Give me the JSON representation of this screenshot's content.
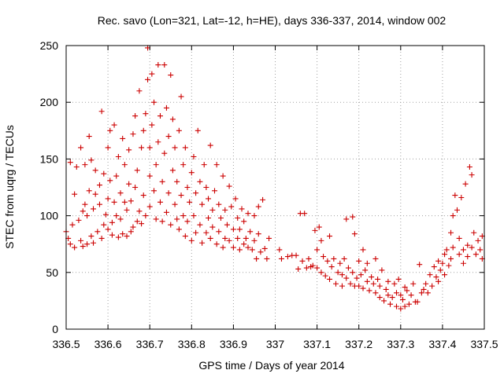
{
  "chart_data": {
    "type": "scatter",
    "title": "Rec. savo (Lon=321, Lat=-12, h=HE), days 336-337, 2014, window 002",
    "xlabel": "GPS time / Days of year 2014",
    "ylabel": "STEC from uqrg / TECUs",
    "xlim": [
      336.5,
      337.5
    ],
    "ylim": [
      0,
      250
    ],
    "xticks": [
      336.5,
      336.6,
      336.7,
      336.8,
      336.9,
      337,
      337.1,
      337.2,
      337.3,
      337.4,
      337.5
    ],
    "xtick_labels": [
      "336.5",
      "336.6",
      "336.7",
      "336.8",
      "336.9",
      "337",
      "337.1",
      "337.2",
      "337.3",
      "337.4",
      "337.5"
    ],
    "yticks": [
      0,
      50,
      100,
      150,
      200,
      250
    ],
    "ytick_labels": [
      "0",
      "50",
      "100",
      "150",
      "200",
      "250"
    ],
    "grid": true,
    "marker": "+",
    "color": "#cc0000",
    "series": [
      {
        "name": "STEC",
        "points": [
          [
            336.5,
            86
          ],
          [
            336.505,
            80
          ],
          [
            336.51,
            75
          ],
          [
            336.51,
            147
          ],
          [
            336.515,
            92
          ],
          [
            336.52,
            72
          ],
          [
            336.52,
            119
          ],
          [
            336.525,
            143
          ],
          [
            336.53,
            96
          ],
          [
            336.535,
            78
          ],
          [
            336.535,
            160
          ],
          [
            336.54,
            73
          ],
          [
            336.54,
            104
          ],
          [
            336.545,
            110
          ],
          [
            336.545,
            145
          ],
          [
            336.55,
            75
          ],
          [
            336.55,
            100
          ],
          [
            336.555,
            170
          ],
          [
            336.555,
            122
          ],
          [
            336.56,
            82
          ],
          [
            336.56,
            149
          ],
          [
            336.565,
            76
          ],
          [
            336.565,
            106
          ],
          [
            336.57,
            119
          ],
          [
            336.57,
            140
          ],
          [
            336.575,
            86
          ],
          [
            336.58,
            110
          ],
          [
            336.58,
            127
          ],
          [
            336.585,
            80
          ],
          [
            336.585,
            192
          ],
          [
            336.59,
            92
          ],
          [
            336.59,
            137
          ],
          [
            336.595,
            101
          ],
          [
            336.6,
            88
          ],
          [
            336.6,
            115
          ],
          [
            336.6,
            160
          ],
          [
            336.605,
            175
          ],
          [
            336.605,
            131
          ],
          [
            336.61,
            94
          ],
          [
            336.61,
            83
          ],
          [
            336.615,
            112
          ],
          [
            336.615,
            180
          ],
          [
            336.62,
            135
          ],
          [
            336.62,
            100
          ],
          [
            336.625,
            81
          ],
          [
            336.625,
            152
          ],
          [
            336.63,
            120
          ],
          [
            336.63,
            97
          ],
          [
            336.635,
            84
          ],
          [
            336.635,
            168
          ],
          [
            336.64,
            112
          ],
          [
            336.64,
            145
          ],
          [
            336.645,
            82
          ],
          [
            336.645,
            105
          ],
          [
            336.65,
            128
          ],
          [
            336.65,
            158
          ],
          [
            336.655,
            86
          ],
          [
            336.655,
            113
          ],
          [
            336.66,
            172
          ],
          [
            336.66,
            90
          ],
          [
            336.665,
            125
          ],
          [
            336.665,
            188
          ],
          [
            336.67,
            95
          ],
          [
            336.67,
            140
          ],
          [
            336.675,
            104
          ],
          [
            336.675,
            210
          ],
          [
            336.68,
            93
          ],
          [
            336.68,
            160
          ],
          [
            336.685,
            118
          ],
          [
            336.685,
            175
          ],
          [
            336.69,
            100
          ],
          [
            336.69,
            190
          ],
          [
            336.695,
            220
          ],
          [
            336.695,
            248
          ],
          [
            336.7,
            108
          ],
          [
            336.7,
            135
          ],
          [
            336.7,
            160
          ],
          [
            336.705,
            225
          ],
          [
            336.705,
            180
          ],
          [
            336.71,
            122
          ],
          [
            336.71,
            200
          ],
          [
            336.715,
            97
          ],
          [
            336.715,
            145
          ],
          [
            336.72,
            233
          ],
          [
            336.72,
            165
          ],
          [
            336.725,
            112
          ],
          [
            336.725,
            188
          ],
          [
            336.73,
            95
          ],
          [
            336.73,
            130
          ],
          [
            336.735,
            233
          ],
          [
            336.735,
            155
          ],
          [
            336.74,
            103
          ],
          [
            336.74,
            195
          ],
          [
            336.745,
            120
          ],
          [
            336.745,
            170
          ],
          [
            336.75,
            224
          ],
          [
            336.75,
            92
          ],
          [
            336.755,
            140
          ],
          [
            336.755,
            185
          ],
          [
            336.76,
            110
          ],
          [
            336.76,
            160
          ],
          [
            336.765,
            97
          ],
          [
            336.765,
            130
          ],
          [
            336.77,
            175
          ],
          [
            336.77,
            88
          ],
          [
            336.775,
            118
          ],
          [
            336.775,
            205
          ],
          [
            336.78,
            145
          ],
          [
            336.78,
            100
          ],
          [
            336.785,
            82
          ],
          [
            336.785,
            160
          ],
          [
            336.79,
            125
          ],
          [
            336.79,
            95
          ],
          [
            336.795,
            112
          ],
          [
            336.8,
            78
          ],
          [
            336.8,
            138
          ],
          [
            336.805,
            152
          ],
          [
            336.805,
            100
          ],
          [
            336.81,
            85
          ],
          [
            336.81,
            120
          ],
          [
            336.815,
            175
          ],
          [
            336.82,
            92
          ],
          [
            336.82,
            130
          ],
          [
            336.825,
            76
          ],
          [
            336.825,
            110
          ],
          [
            336.83,
            145
          ],
          [
            336.835,
            85
          ],
          [
            336.835,
            125
          ],
          [
            336.84,
            98
          ],
          [
            336.84,
            115
          ],
          [
            336.845,
            80
          ],
          [
            336.845,
            162
          ],
          [
            336.85,
            105
          ],
          [
            336.85,
            90
          ],
          [
            336.855,
            122
          ],
          [
            336.86,
            75
          ],
          [
            336.86,
            145
          ],
          [
            336.865,
            110
          ],
          [
            336.865,
            86
          ],
          [
            336.87,
            98
          ],
          [
            336.875,
            72
          ],
          [
            336.875,
            135
          ],
          [
            336.88,
            105
          ],
          [
            336.88,
            80
          ],
          [
            336.885,
            92
          ],
          [
            336.89,
            78
          ],
          [
            336.89,
            126
          ],
          [
            336.895,
            108
          ],
          [
            336.9,
            72
          ],
          [
            336.9,
            88
          ],
          [
            336.905,
            115
          ],
          [
            336.91,
            80
          ],
          [
            336.91,
            98
          ],
          [
            336.915,
            70
          ],
          [
            336.915,
            88
          ],
          [
            336.92,
            106
          ],
          [
            336.925,
            75
          ],
          [
            336.925,
            95
          ],
          [
            336.93,
            80
          ],
          [
            336.935,
            102
          ],
          [
            336.935,
            72
          ],
          [
            336.94,
            86
          ],
          [
            336.945,
            70
          ],
          [
            336.95,
            100
          ],
          [
            336.95,
            78
          ],
          [
            336.955,
            62
          ],
          [
            336.96,
            108
          ],
          [
            336.96,
            84
          ],
          [
            336.965,
            68
          ],
          [
            336.97,
            114
          ],
          [
            336.975,
            71
          ],
          [
            336.98,
            62
          ],
          [
            336.985,
            80
          ],
          [
            337.01,
            70
          ],
          [
            337.015,
            62
          ],
          [
            337.03,
            64
          ],
          [
            337.04,
            65
          ],
          [
            337.05,
            65
          ],
          [
            337.055,
            53
          ],
          [
            337.06,
            102
          ],
          [
            337.065,
            60
          ],
          [
            337.07,
            102
          ],
          [
            337.075,
            54
          ],
          [
            337.08,
            62
          ],
          [
            337.085,
            55
          ],
          [
            337.09,
            56
          ],
          [
            337.095,
            87
          ],
          [
            337.1,
            54
          ],
          [
            337.1,
            70
          ],
          [
            337.105,
            90
          ],
          [
            337.11,
            50
          ],
          [
            337.11,
            78
          ],
          [
            337.115,
            64
          ],
          [
            337.12,
            47
          ],
          [
            337.125,
            60
          ],
          [
            337.13,
            82
          ],
          [
            337.13,
            44
          ],
          [
            337.135,
            55
          ],
          [
            337.14,
            62
          ],
          [
            337.145,
            40
          ],
          [
            337.15,
            50
          ],
          [
            337.155,
            58
          ],
          [
            337.16,
            38
          ],
          [
            337.16,
            48
          ],
          [
            337.165,
            62
          ],
          [
            337.17,
            97
          ],
          [
            337.17,
            45
          ],
          [
            337.175,
            54
          ],
          [
            337.18,
            40
          ],
          [
            337.185,
            99
          ],
          [
            337.185,
            50
          ],
          [
            337.19,
            84
          ],
          [
            337.19,
            38
          ],
          [
            337.195,
            45
          ],
          [
            337.2,
            60
          ],
          [
            337.2,
            38
          ],
          [
            337.205,
            48
          ],
          [
            337.21,
            70
          ],
          [
            337.21,
            36
          ],
          [
            337.215,
            52
          ],
          [
            337.22,
            42
          ],
          [
            337.22,
            58
          ],
          [
            337.225,
            34
          ],
          [
            337.23,
            46
          ],
          [
            337.235,
            40
          ],
          [
            337.24,
            62
          ],
          [
            337.24,
            32
          ],
          [
            337.245,
            44
          ],
          [
            337.25,
            28
          ],
          [
            337.25,
            38
          ],
          [
            337.255,
            52
          ],
          [
            337.26,
            25
          ],
          [
            337.265,
            35
          ],
          [
            337.27,
            30
          ],
          [
            337.27,
            42
          ],
          [
            337.275,
            22
          ],
          [
            337.28,
            28
          ],
          [
            337.285,
            40
          ],
          [
            337.29,
            20
          ],
          [
            337.29,
            32
          ],
          [
            337.295,
            44
          ],
          [
            337.3,
            18
          ],
          [
            337.3,
            30
          ],
          [
            337.305,
            26
          ],
          [
            337.31,
            37
          ],
          [
            337.31,
            20
          ],
          [
            337.315,
            34
          ],
          [
            337.32,
            22
          ],
          [
            337.325,
            30
          ],
          [
            337.33,
            40
          ],
          [
            337.335,
            24
          ],
          [
            337.34,
            24
          ],
          [
            337.345,
            57
          ],
          [
            337.35,
            32
          ],
          [
            337.355,
            35
          ],
          [
            337.36,
            40
          ],
          [
            337.365,
            32
          ],
          [
            337.37,
            48
          ],
          [
            337.375,
            38
          ],
          [
            337.38,
            55
          ],
          [
            337.385,
            46
          ],
          [
            337.39,
            60
          ],
          [
            337.39,
            42
          ],
          [
            337.395,
            52
          ],
          [
            337.4,
            58
          ],
          [
            337.405,
            66
          ],
          [
            337.405,
            48
          ],
          [
            337.41,
            70
          ],
          [
            337.415,
            56
          ],
          [
            337.42,
            85
          ],
          [
            337.42,
            62
          ],
          [
            337.425,
            100
          ],
          [
            337.425,
            72
          ],
          [
            337.43,
            118
          ],
          [
            337.435,
            105
          ],
          [
            337.44,
            66
          ],
          [
            337.44,
            80
          ],
          [
            337.445,
            116
          ],
          [
            337.45,
            70
          ],
          [
            337.45,
            58
          ],
          [
            337.455,
            128
          ],
          [
            337.46,
            74
          ],
          [
            337.46,
            64
          ],
          [
            337.465,
            143
          ],
          [
            337.47,
            136
          ],
          [
            337.47,
            72
          ],
          [
            337.475,
            85
          ],
          [
            337.48,
            66
          ],
          [
            337.485,
            78
          ],
          [
            337.49,
            70
          ],
          [
            337.495,
            82
          ],
          [
            337.495,
            62
          ]
        ]
      }
    ]
  }
}
